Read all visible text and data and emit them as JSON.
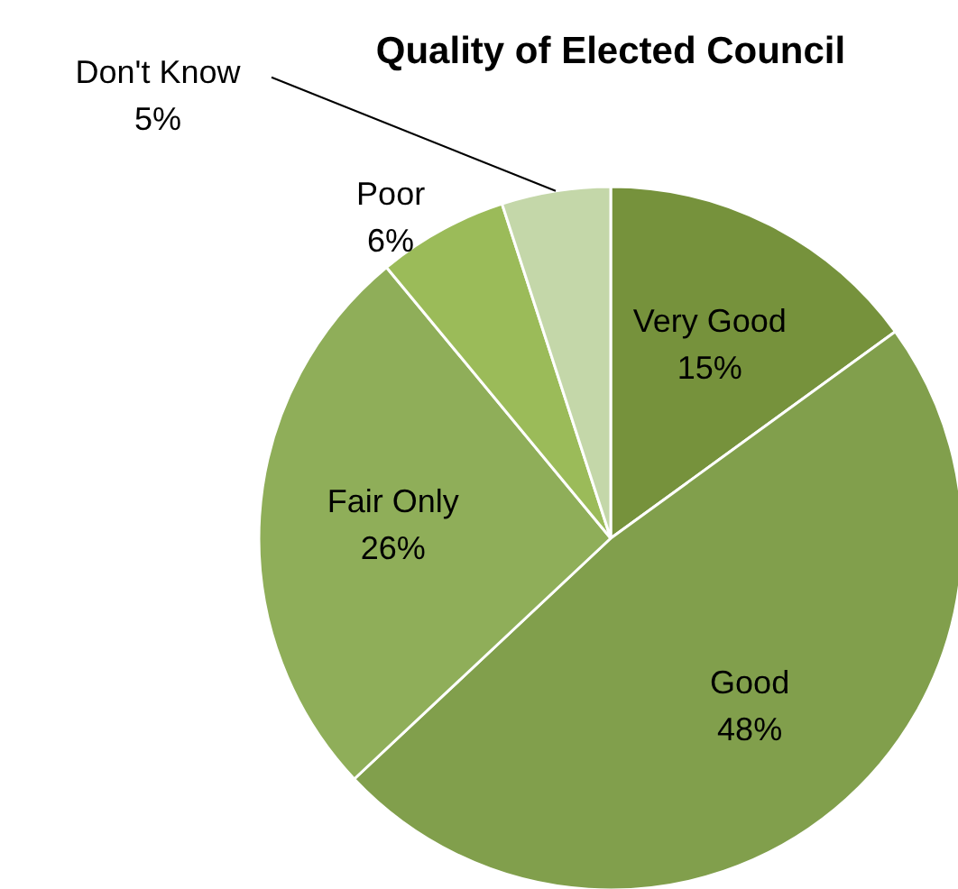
{
  "chart_data": {
    "type": "pie",
    "title": "Quality of Elected Council",
    "categories": [
      "Very Good",
      "Good",
      "Fair Only",
      "Poor",
      "Don't Know"
    ],
    "values": [
      15,
      48,
      26,
      6,
      5
    ],
    "colors": [
      "#76923c",
      "#819f4c",
      "#8fae59",
      "#9bbb59",
      "#c4d7a9"
    ],
    "value_labels": [
      "15%",
      "48%",
      "26%",
      "6%",
      "5%"
    ]
  }
}
